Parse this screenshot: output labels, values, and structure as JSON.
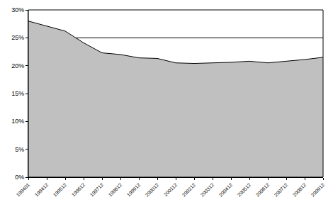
{
  "chart_data": {
    "type": "area",
    "categories": [
      "199401",
      "199412",
      "199512",
      "199612",
      "199712",
      "199812",
      "199912",
      "200012",
      "200112",
      "200212",
      "200312",
      "200412",
      "200512",
      "200612",
      "200712",
      "200812",
      "200912"
    ],
    "values": [
      28,
      27.1,
      26.2,
      24.1,
      22.3,
      22,
      21.4,
      21.3,
      20.5,
      20.4,
      20.5,
      20.6,
      20.8,
      20.5,
      20.8,
      21.1,
      21.5
    ],
    "color": "#c0c0c0",
    "ylim": [
      0,
      30
    ],
    "yticks": [
      {
        "value": 0,
        "label": "0%"
      },
      {
        "value": 5,
        "label": "5%"
      },
      {
        "value": 10,
        "label": "10%"
      },
      {
        "value": 15,
        "label": "15%"
      },
      {
        "value": 20,
        "label": "20%"
      },
      {
        "value": 25,
        "label": "25%"
      },
      {
        "value": 30,
        "label": "30%"
      }
    ],
    "grid": true
  }
}
